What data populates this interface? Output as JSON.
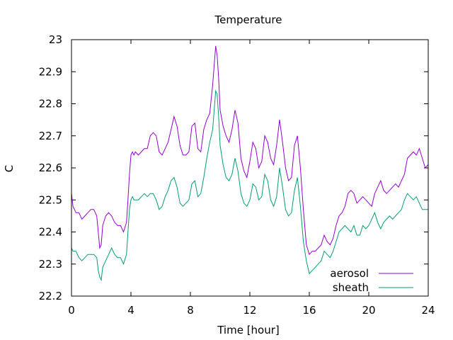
{
  "chart_data": {
    "type": "line",
    "title": "Temperature",
    "xlabel": "Time [hour]",
    "ylabel": "C",
    "xlim": [
      0,
      24
    ],
    "ylim": [
      22.2,
      23.0
    ],
    "xticks": [
      "0",
      "4",
      "8",
      "12",
      "16",
      "20",
      "24"
    ],
    "yticks": [
      "22.2",
      "22.3",
      "22.4",
      "22.5",
      "22.6",
      "22.7",
      "22.8",
      "22.9",
      "23"
    ],
    "grid": false,
    "legend": "bottom-right",
    "series": [
      {
        "name": "aerosol",
        "color": "#9400d3",
        "x": [
          0,
          0.1,
          0.3,
          0.5,
          0.7,
          0.9,
          1.1,
          1.3,
          1.5,
          1.7,
          1.8,
          1.9,
          2.0,
          2.1,
          2.3,
          2.5,
          2.7,
          2.9,
          3.1,
          3.3,
          3.5,
          3.7,
          3.8,
          3.9,
          4.0,
          4.1,
          4.2,
          4.3,
          4.5,
          4.7,
          4.9,
          5.1,
          5.3,
          5.5,
          5.7,
          5.9,
          6.1,
          6.3,
          6.5,
          6.7,
          6.9,
          7.1,
          7.3,
          7.5,
          7.7,
          7.9,
          8.1,
          8.3,
          8.5,
          8.7,
          8.9,
          9.1,
          9.3,
          9.5,
          9.6,
          9.7,
          9.8,
          9.9,
          10.0,
          10.2,
          10.4,
          10.6,
          10.8,
          11.0,
          11.2,
          11.4,
          11.6,
          11.8,
          12.0,
          12.2,
          12.4,
          12.6,
          12.8,
          13.0,
          13.2,
          13.4,
          13.6,
          13.8,
          14.0,
          14.2,
          14.4,
          14.6,
          14.8,
          15.0,
          15.2,
          15.4,
          15.6,
          15.8,
          16.0,
          16.2,
          16.4,
          16.6,
          16.8,
          17.0,
          17.2,
          17.4,
          17.6,
          17.8,
          18.0,
          18.2,
          18.4,
          18.6,
          18.8,
          19.0,
          19.2,
          19.4,
          19.6,
          19.8,
          20.0,
          20.2,
          20.4,
          20.6,
          20.8,
          21.0,
          21.2,
          21.4,
          21.6,
          21.8,
          22.0,
          22.2,
          22.4,
          22.6,
          22.8,
          23.0,
          23.2,
          23.4,
          23.6,
          23.8,
          24.0
        ],
        "y": [
          22.52,
          22.48,
          22.46,
          22.46,
          22.44,
          22.45,
          22.46,
          22.47,
          22.47,
          22.45,
          22.4,
          22.35,
          22.36,
          22.42,
          22.45,
          22.46,
          22.45,
          22.43,
          22.42,
          22.42,
          22.4,
          22.43,
          22.5,
          22.58,
          22.64,
          22.65,
          22.64,
          22.65,
          22.64,
          22.65,
          22.66,
          22.66,
          22.7,
          22.71,
          22.7,
          22.65,
          22.64,
          22.66,
          22.68,
          22.72,
          22.76,
          22.73,
          22.67,
          22.64,
          22.64,
          22.65,
          22.73,
          22.74,
          22.66,
          22.65,
          22.72,
          22.75,
          22.77,
          22.86,
          22.92,
          22.98,
          22.95,
          22.88,
          22.78,
          22.73,
          22.7,
          22.68,
          22.72,
          22.78,
          22.74,
          22.63,
          22.59,
          22.57,
          22.62,
          22.68,
          22.66,
          22.6,
          22.62,
          22.7,
          22.68,
          22.63,
          22.61,
          22.67,
          22.75,
          22.68,
          22.6,
          22.56,
          22.57,
          22.67,
          22.7,
          22.6,
          22.47,
          22.36,
          22.33,
          22.34,
          22.34,
          22.35,
          22.36,
          22.39,
          22.37,
          22.36,
          22.38,
          22.42,
          22.45,
          22.46,
          22.48,
          22.52,
          22.53,
          22.52,
          22.49,
          22.5,
          22.51,
          22.5,
          22.49,
          22.48,
          22.52,
          22.54,
          22.56,
          22.53,
          22.52,
          22.53,
          22.54,
          22.55,
          22.54,
          22.56,
          22.58,
          22.63,
          22.64,
          22.65,
          22.64,
          22.66,
          22.63,
          22.6,
          22.61
        ]
      },
      {
        "name": "sheath",
        "color": "#009e73",
        "x": [
          0,
          0.1,
          0.3,
          0.5,
          0.7,
          0.9,
          1.1,
          1.3,
          1.5,
          1.7,
          1.8,
          1.9,
          2.0,
          2.1,
          2.3,
          2.5,
          2.7,
          2.9,
          3.1,
          3.3,
          3.5,
          3.7,
          3.8,
          3.9,
          4.0,
          4.1,
          4.2,
          4.3,
          4.5,
          4.7,
          4.9,
          5.1,
          5.3,
          5.5,
          5.7,
          5.9,
          6.1,
          6.3,
          6.5,
          6.7,
          6.9,
          7.1,
          7.3,
          7.5,
          7.7,
          7.9,
          8.1,
          8.3,
          8.5,
          8.7,
          8.9,
          9.1,
          9.3,
          9.5,
          9.6,
          9.7,
          9.8,
          9.9,
          10.0,
          10.2,
          10.4,
          10.6,
          10.8,
          11.0,
          11.2,
          11.4,
          11.6,
          11.8,
          12.0,
          12.2,
          12.4,
          12.6,
          12.8,
          13.0,
          13.2,
          13.4,
          13.6,
          13.8,
          14.0,
          14.2,
          14.4,
          14.6,
          14.8,
          15.0,
          15.2,
          15.4,
          15.6,
          15.8,
          16.0,
          16.2,
          16.4,
          16.6,
          16.8,
          17.0,
          17.2,
          17.4,
          17.6,
          17.8,
          18.0,
          18.2,
          18.4,
          18.6,
          18.8,
          19.0,
          19.2,
          19.4,
          19.6,
          19.8,
          20.0,
          20.2,
          20.4,
          20.6,
          20.8,
          21.0,
          21.2,
          21.4,
          21.6,
          21.8,
          22.0,
          22.2,
          22.4,
          22.6,
          22.8,
          23.0,
          23.2,
          23.4,
          23.6,
          23.8,
          24.0
        ],
        "y": [
          22.35,
          22.34,
          22.34,
          22.32,
          22.31,
          22.32,
          22.33,
          22.33,
          22.33,
          22.32,
          22.28,
          22.26,
          22.25,
          22.29,
          22.31,
          22.33,
          22.35,
          22.33,
          22.32,
          22.32,
          22.3,
          22.33,
          22.4,
          22.47,
          22.5,
          22.51,
          22.5,
          22.5,
          22.5,
          22.51,
          22.52,
          22.51,
          22.52,
          22.52,
          22.5,
          22.47,
          22.48,
          22.51,
          22.53,
          22.56,
          22.57,
          22.54,
          22.49,
          22.48,
          22.49,
          22.5,
          22.55,
          22.56,
          22.51,
          22.52,
          22.57,
          22.63,
          22.68,
          22.72,
          22.78,
          22.84,
          22.83,
          22.76,
          22.67,
          22.61,
          22.57,
          22.56,
          22.58,
          22.63,
          22.59,
          22.52,
          22.49,
          22.48,
          22.5,
          22.55,
          22.54,
          22.5,
          22.51,
          22.58,
          22.56,
          22.5,
          22.48,
          22.51,
          22.6,
          22.54,
          22.47,
          22.45,
          22.46,
          22.53,
          22.57,
          22.48,
          22.37,
          22.31,
          22.27,
          22.28,
          22.29,
          22.3,
          22.31,
          22.34,
          22.33,
          22.32,
          22.34,
          22.37,
          22.4,
          22.41,
          22.42,
          22.41,
          22.4,
          22.42,
          22.39,
          22.39,
          22.42,
          22.41,
          22.42,
          22.44,
          22.46,
          22.43,
          22.41,
          22.43,
          22.44,
          22.45,
          22.44,
          22.45,
          22.46,
          22.47,
          22.5,
          22.52,
          22.51,
          22.5,
          22.51,
          22.49,
          22.47,
          22.47,
          22.47
        ]
      }
    ]
  }
}
